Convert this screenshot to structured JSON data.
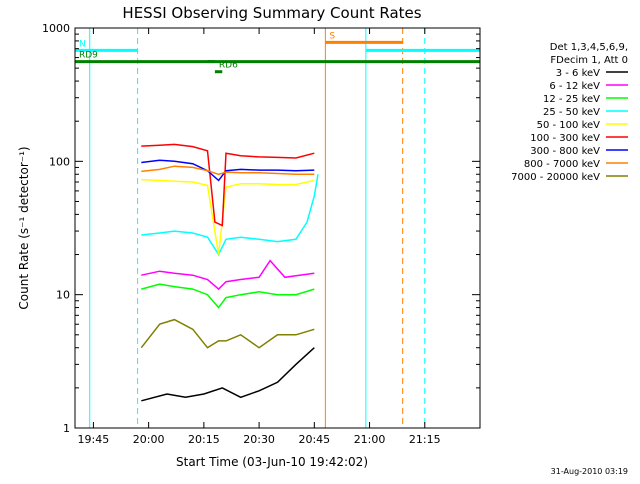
{
  "chart_data": {
    "type": "line",
    "title": "HESSI Observing Summary Count Rates",
    "xlabel": "Start Time (03-Jun-10 19:42:02)",
    "ylabel": "Count Rate (s⁻¹ detector⁻¹)",
    "y_scale": "log",
    "ylim": [
      1,
      1000
    ],
    "xlim_minutes": [
      -5,
      105
    ],
    "x_ticks": [
      {
        "label": "19:45",
        "value": 0
      },
      {
        "label": "20:00",
        "value": 15
      },
      {
        "label": "20:15",
        "value": 30
      },
      {
        "label": "20:30",
        "value": 45
      },
      {
        "label": "20:45",
        "value": 60
      },
      {
        "label": "21:00",
        "value": 75
      },
      {
        "label": "21:15",
        "value": 90
      }
    ],
    "y_ticks": [
      {
        "label": "1",
        "value": 1
      },
      {
        "label": "10",
        "value": 10
      },
      {
        "label": "100",
        "value": 100
      },
      {
        "label": "1000",
        "value": 1000
      }
    ],
    "grid": false,
    "legend_position": "right",
    "legend_header": [
      "Det 1,3,4,5,6,9,",
      "FDecim 1, Att 0"
    ],
    "series": [
      {
        "name": "3 - 6 keV",
        "color": "#000000",
        "values": [
          [
            13,
            1.6
          ],
          [
            20,
            1.8
          ],
          [
            25,
            1.7
          ],
          [
            30,
            1.8
          ],
          [
            35,
            2.0
          ],
          [
            40,
            1.7
          ],
          [
            45,
            1.9
          ],
          [
            50,
            2.2
          ],
          [
            55,
            3.0
          ],
          [
            60,
            4.0
          ]
        ]
      },
      {
        "name": "6 - 12 keV",
        "color": "#ff00ff",
        "values": [
          [
            13,
            14
          ],
          [
            18,
            15
          ],
          [
            22,
            14.5
          ],
          [
            27,
            14
          ],
          [
            31,
            13
          ],
          [
            34,
            11
          ],
          [
            36,
            12.5
          ],
          [
            40,
            13
          ],
          [
            45,
            13.5
          ],
          [
            48,
            18
          ],
          [
            52,
            13.5
          ],
          [
            56,
            14
          ],
          [
            60,
            14.5
          ]
        ]
      },
      {
        "name": "12 - 25 keV",
        "color": "#00ff00",
        "values": [
          [
            13,
            11
          ],
          [
            18,
            12
          ],
          [
            22,
            11.5
          ],
          [
            27,
            11
          ],
          [
            31,
            10
          ],
          [
            34,
            8
          ],
          [
            36,
            9.5
          ],
          [
            40,
            10
          ],
          [
            45,
            10.5
          ],
          [
            50,
            10
          ],
          [
            55,
            10
          ],
          [
            60,
            11
          ]
        ]
      },
      {
        "name": "25 - 50 keV",
        "color": "#00ffff",
        "values": [
          [
            13,
            28
          ],
          [
            18,
            29
          ],
          [
            22,
            30
          ],
          [
            27,
            29
          ],
          [
            31,
            27
          ],
          [
            34,
            20
          ],
          [
            36,
            26
          ],
          [
            40,
            27
          ],
          [
            45,
            26
          ],
          [
            50,
            25
          ],
          [
            55,
            26
          ],
          [
            58,
            35
          ],
          [
            60,
            55
          ],
          [
            61,
            80
          ]
        ]
      },
      {
        "name": "50 - 100 keV",
        "color": "#ffff00",
        "values": [
          [
            13,
            73
          ],
          [
            18,
            72
          ],
          [
            22,
            71
          ],
          [
            27,
            70
          ],
          [
            31,
            66
          ],
          [
            34,
            20
          ],
          [
            36,
            64
          ],
          [
            40,
            68
          ],
          [
            45,
            68
          ],
          [
            50,
            67
          ],
          [
            55,
            67
          ],
          [
            60,
            72
          ]
        ]
      },
      {
        "name": "100 - 300 keV",
        "color": "#ff0000",
        "values": [
          [
            13,
            130
          ],
          [
            18,
            132
          ],
          [
            22,
            134
          ],
          [
            27,
            129
          ],
          [
            31,
            120
          ],
          [
            33,
            35
          ],
          [
            35,
            33
          ],
          [
            36,
            115
          ],
          [
            40,
            110
          ],
          [
            45,
            108
          ],
          [
            50,
            107
          ],
          [
            55,
            106
          ],
          [
            60,
            115
          ]
        ]
      },
      {
        "name": "300 - 800 keV",
        "color": "#0000ff",
        "values": [
          [
            13,
            98
          ],
          [
            18,
            102
          ],
          [
            22,
            100
          ],
          [
            27,
            96
          ],
          [
            31,
            85
          ],
          [
            34,
            72
          ],
          [
            36,
            85
          ],
          [
            40,
            87
          ],
          [
            45,
            86
          ],
          [
            50,
            86
          ],
          [
            55,
            85
          ],
          [
            60,
            86
          ]
        ]
      },
      {
        "name": "800 - 7000 keV",
        "color": "#ff8000",
        "values": [
          [
            13,
            84
          ],
          [
            18,
            87
          ],
          [
            22,
            92
          ],
          [
            27,
            90
          ],
          [
            31,
            85
          ],
          [
            34,
            80
          ],
          [
            36,
            83
          ],
          [
            40,
            82
          ],
          [
            45,
            82
          ],
          [
            50,
            81
          ],
          [
            55,
            80
          ],
          [
            60,
            80
          ]
        ]
      },
      {
        "name": "7000 - 20000 keV",
        "color": "#808000",
        "values": [
          [
            13,
            4
          ],
          [
            18,
            6
          ],
          [
            22,
            6.5
          ],
          [
            27,
            5.5
          ],
          [
            31,
            4
          ],
          [
            34,
            4.5
          ],
          [
            36,
            4.5
          ],
          [
            40,
            5
          ],
          [
            45,
            4
          ],
          [
            50,
            5
          ],
          [
            55,
            5
          ],
          [
            60,
            5.5
          ]
        ]
      }
    ],
    "annotations": [
      {
        "label": "N",
        "color": "#00ffff",
        "level": 680,
        "x_start": -5,
        "x_end": 12
      },
      {
        "label": "S",
        "color": "#ff8000",
        "level": 780,
        "x_start": 63,
        "x_end": 84
      },
      {
        "label": "RD9",
        "color": "#008000",
        "level": 560,
        "x_start": -5,
        "x_end": 105
      },
      {
        "label": "RD6",
        "color": "#008000",
        "level": 470,
        "x_start": 33,
        "x_end": 35
      },
      {
        "label": "",
        "color": "#00ffff",
        "level": 680,
        "x_start": 74,
        "x_end": 105
      },
      {
        "label": "",
        "color": "#008000",
        "level": 560,
        "x_start": 31,
        "x_end": 33
      }
    ],
    "vertical_markers": [
      {
        "x": -1,
        "color": "#00ffff",
        "style": "solid"
      },
      {
        "x": 12,
        "color": "#00ffff",
        "style": "dashed"
      },
      {
        "x": 63,
        "color": "#ff8000",
        "style": "solid"
      },
      {
        "x": 74,
        "color": "#00ffff",
        "style": "solid"
      },
      {
        "x": 84,
        "color": "#ff8000",
        "style": "dashed"
      },
      {
        "x": 90,
        "color": "#00ffff",
        "style": "dashed"
      }
    ],
    "timestamp": "31-Aug-2010 03:19"
  }
}
